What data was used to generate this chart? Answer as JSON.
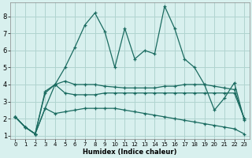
{
  "xlabel": "Humidex (Indice chaleur)",
  "bg_color": "#d8f0ee",
  "grid_color": "#b0d4d0",
  "line_color": "#1a6b60",
  "xlim": [
    -0.5,
    23.5
  ],
  "ylim": [
    0.8,
    8.8
  ],
  "xticks": [
    0,
    1,
    2,
    3,
    4,
    5,
    6,
    7,
    8,
    9,
    10,
    11,
    12,
    13,
    14,
    15,
    16,
    17,
    18,
    19,
    20,
    21,
    22,
    23
  ],
  "yticks": [
    1,
    2,
    3,
    4,
    5,
    6,
    7,
    8
  ],
  "series": [
    [
      2.1,
      1.5,
      1.1,
      3.5,
      4.0,
      5.0,
      6.2,
      7.5,
      8.2,
      7.1,
      5.0,
      7.3,
      5.5,
      6.0,
      5.8,
      8.6,
      7.3,
      5.5,
      5.0,
      4.0,
      2.5,
      3.2,
      4.1,
      1.9
    ],
    [
      2.1,
      1.5,
      1.1,
      3.6,
      4.0,
      4.2,
      4.0,
      4.0,
      4.0,
      3.9,
      3.85,
      3.8,
      3.8,
      3.8,
      3.8,
      3.9,
      3.9,
      4.0,
      4.0,
      4.0,
      3.9,
      3.8,
      3.7,
      2.0
    ],
    [
      2.1,
      1.5,
      1.1,
      2.6,
      4.0,
      3.5,
      3.4,
      3.4,
      3.4,
      3.5,
      3.5,
      3.5,
      3.5,
      3.5,
      3.5,
      3.5,
      3.5,
      3.5,
      3.5,
      3.5,
      3.5,
      3.5,
      3.5,
      2.0
    ],
    [
      2.1,
      1.5,
      1.1,
      2.6,
      2.3,
      2.4,
      2.5,
      2.6,
      2.6,
      2.6,
      2.6,
      2.5,
      2.4,
      2.3,
      2.2,
      2.1,
      2.0,
      1.9,
      1.8,
      1.7,
      1.6,
      1.5,
      1.4,
      1.1
    ]
  ]
}
